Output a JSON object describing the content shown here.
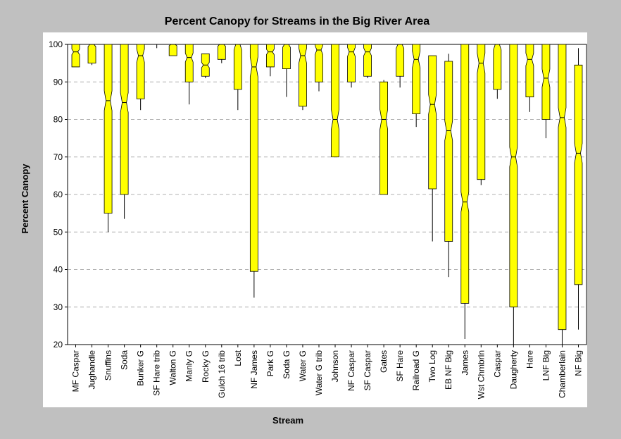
{
  "chart_data": {
    "type": "box",
    "title": "Percent Canopy for Streams in the Big River Area",
    "xlabel": "Stream",
    "ylabel": "Percent Canopy",
    "ylim": [
      20,
      100
    ],
    "yticks": [
      20,
      30,
      40,
      50,
      60,
      70,
      80,
      90,
      100
    ],
    "grid": "horizontal-dashed",
    "box_color": "#ffff00",
    "background_color": "#c0c0c0",
    "plot_background": "#ffffff",
    "series": [
      {
        "name": "MF Caspar",
        "min": 94,
        "q1": 94,
        "median": 98,
        "q3": 100,
        "max": 100
      },
      {
        "name": "Jughandle",
        "min": 94.5,
        "q1": 95,
        "median": 100,
        "q3": 100,
        "max": 100
      },
      {
        "name": "Snuffins",
        "min": 50,
        "q1": 55,
        "median": 85,
        "q3": 100,
        "max": 100
      },
      {
        "name": "Soda",
        "min": 53.5,
        "q1": 60,
        "median": 84.5,
        "q3": 100,
        "max": 100
      },
      {
        "name": "Bunker G",
        "min": 82.5,
        "q1": 85.5,
        "median": 97,
        "q3": 100,
        "max": 100
      },
      {
        "name": "SF Hare trib",
        "min": 99,
        "q1": 100,
        "median": 100,
        "q3": 100,
        "max": 100
      },
      {
        "name": "Walton G",
        "min": 97,
        "q1": 97,
        "median": 100,
        "q3": 100,
        "max": 100
      },
      {
        "name": "Manly G",
        "min": 84,
        "q1": 90,
        "median": 96.5,
        "q3": 100,
        "max": 100
      },
      {
        "name": "Rocky G",
        "min": 91,
        "q1": 91.5,
        "median": 94.5,
        "q3": 97.5,
        "max": 97.5
      },
      {
        "name": "Gulch 16 trib",
        "min": 95,
        "q1": 96,
        "median": 100,
        "q3": 100,
        "max": 100
      },
      {
        "name": "Lost",
        "min": 82.5,
        "q1": 88,
        "median": 100,
        "q3": 100,
        "max": 100
      },
      {
        "name": "NF James",
        "min": 32.5,
        "q1": 39.5,
        "median": 94,
        "q3": 100,
        "max": 100
      },
      {
        "name": "Park G",
        "min": 91.5,
        "q1": 94,
        "median": 98,
        "q3": 100,
        "max": 100
      },
      {
        "name": "Soda G",
        "min": 86,
        "q1": 93.5,
        "median": 100,
        "q3": 100,
        "max": 100
      },
      {
        "name": "Water G",
        "min": 82.5,
        "q1": 83.5,
        "median": 97,
        "q3": 100,
        "max": 100
      },
      {
        "name": "Water G trib",
        "min": 87.5,
        "q1": 90,
        "median": 98.5,
        "q3": 100,
        "max": 100
      },
      {
        "name": "Johnson",
        "min": 70,
        "q1": 70,
        "median": 80,
        "q3": 100,
        "max": 100
      },
      {
        "name": "NF Caspar",
        "min": 88.5,
        "q1": 90,
        "median": 98,
        "q3": 100,
        "max": 100
      },
      {
        "name": "SF Caspar",
        "min": 91,
        "q1": 91.5,
        "median": 98,
        "q3": 100,
        "max": 100
      },
      {
        "name": "Gates",
        "min": 60,
        "q1": 60,
        "median": 80,
        "q3": 90,
        "max": 90.5
      },
      {
        "name": "SF Hare",
        "min": 88.5,
        "q1": 91.5,
        "median": 100,
        "q3": 100,
        "max": 100
      },
      {
        "name": "Railroad G",
        "min": 78,
        "q1": 81.5,
        "median": 96,
        "q3": 100,
        "max": 100
      },
      {
        "name": "Two Log",
        "min": 47.5,
        "q1": 61.5,
        "median": 84,
        "q3": 97,
        "max": 97
      },
      {
        "name": "EB NF Big",
        "min": 38,
        "q1": 47.5,
        "median": 77,
        "q3": 95.5,
        "max": 97.5
      },
      {
        "name": "James",
        "min": 21.5,
        "q1": 31,
        "median": 58,
        "q3": 100,
        "max": 100
      },
      {
        "name": "Wst Chmbrln",
        "min": 62.5,
        "q1": 64,
        "median": 95,
        "q3": 100,
        "max": 100
      },
      {
        "name": "Caspar",
        "min": 85.5,
        "q1": 88,
        "median": 100,
        "q3": 100,
        "max": 100
      },
      {
        "name": "Daugherty",
        "min": 20,
        "q1": 30,
        "median": 70,
        "q3": 100,
        "max": 100
      },
      {
        "name": "Hare",
        "min": 82,
        "q1": 86,
        "median": 96,
        "q3": 100,
        "max": 100
      },
      {
        "name": "LNF Big",
        "min": 75,
        "q1": 80,
        "median": 91,
        "q3": 100,
        "max": 100
      },
      {
        "name": "Chamberlain",
        "min": 20,
        "q1": 24,
        "median": 80.5,
        "q3": 100,
        "max": 100
      },
      {
        "name": "NF Big",
        "min": 24,
        "q1": 36,
        "median": 71,
        "q3": 94.5,
        "max": 99
      }
    ]
  }
}
